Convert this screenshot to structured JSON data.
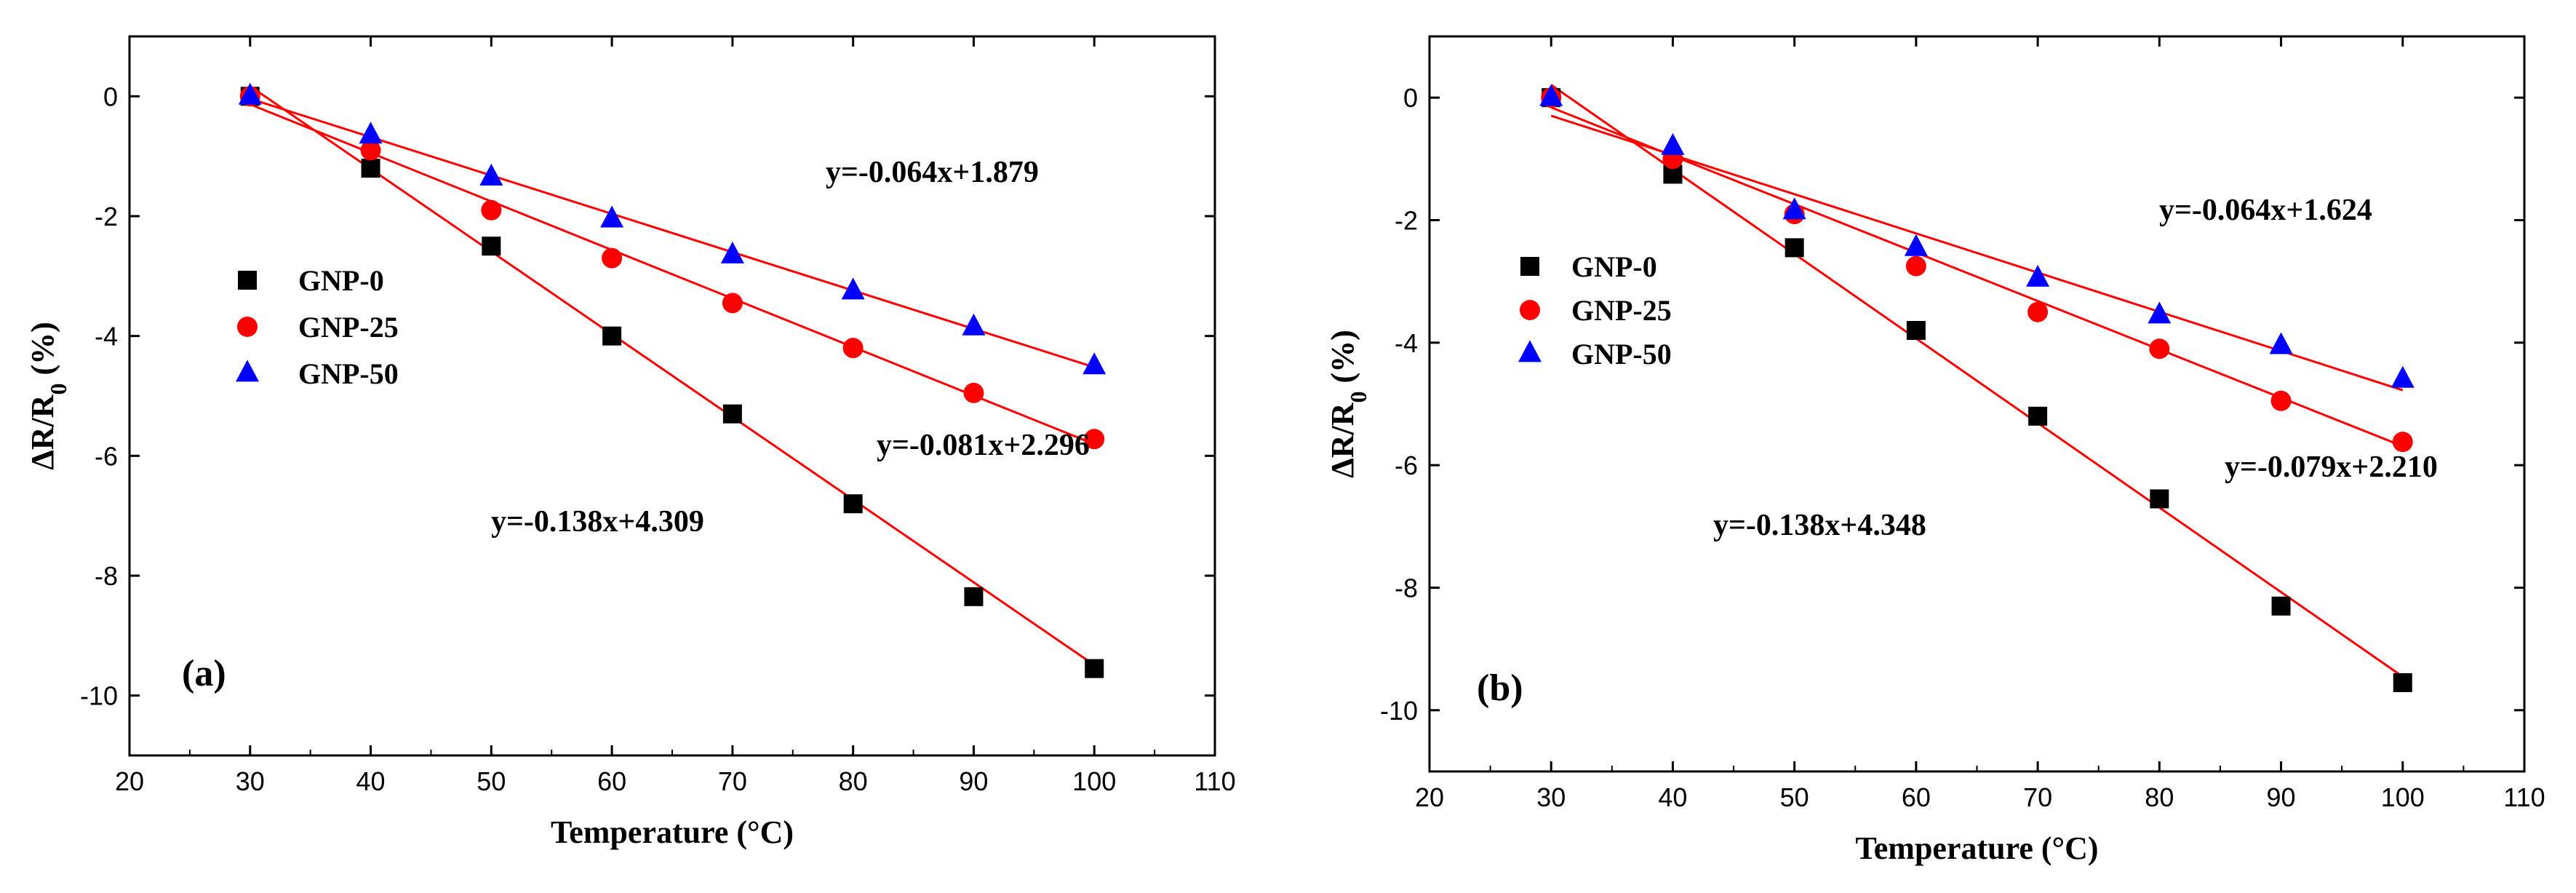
{
  "chart_data": [
    {
      "type": "scatter",
      "panel_label": "(a)",
      "xlabel": "Temperature  (°C)",
      "ylabel": "ΔR/R",
      "ylabel_sub": "0",
      "ylabel_suffix": "  (%)",
      "xlim": [
        20,
        110
      ],
      "ylim": [
        -11,
        1
      ],
      "xticks": [
        20,
        30,
        40,
        50,
        60,
        70,
        80,
        90,
        100,
        110
      ],
      "yticks": [
        0,
        -2,
        -4,
        -6,
        -8,
        -10
      ],
      "x": [
        30,
        40,
        50,
        60,
        70,
        80,
        90,
        100
      ],
      "legend_position": "left-middle",
      "series": [
        {
          "name": "GNP-0",
          "marker": "square",
          "color": "#000000",
          "values": [
            0,
            -1.2,
            -2.5,
            -4.0,
            -5.3,
            -6.8,
            -8.35,
            -9.55
          ],
          "fit": {
            "slope": -0.138,
            "intercept": 4.309,
            "label": "y=-0.138x+4.309"
          }
        },
        {
          "name": "GNP-25",
          "marker": "circle",
          "color": "#ff0000",
          "values": [
            0,
            -0.9,
            -1.9,
            -2.7,
            -3.45,
            -4.2,
            -4.95,
            -5.72
          ],
          "fit": {
            "slope": -0.081,
            "intercept": 2.296,
            "label": "y=-0.081x+2.296"
          }
        },
        {
          "name": "GNP-50",
          "marker": "triangle",
          "color": "#0000ff",
          "values": [
            0,
            -0.65,
            -1.35,
            -2.05,
            -2.65,
            -3.25,
            -3.85,
            -4.5
          ],
          "fit": {
            "slope": -0.064,
            "intercept": 1.879,
            "label": "y=-0.064x+1.879"
          }
        }
      ],
      "fit_line_color": "#ff0000"
    },
    {
      "type": "scatter",
      "panel_label": "(b)",
      "xlabel": "Temperature  (°C)",
      "ylabel": "ΔR/R",
      "ylabel_sub": "0",
      "ylabel_suffix": "  (%)",
      "xlim": [
        20,
        110
      ],
      "ylim": [
        -11,
        1
      ],
      "xticks": [
        20,
        30,
        40,
        50,
        60,
        70,
        80,
        90,
        100,
        110
      ],
      "yticks": [
        0,
        -2,
        -4,
        -6,
        -8,
        -10
      ],
      "x": [
        30,
        40,
        50,
        60,
        70,
        80,
        90,
        100
      ],
      "legend_position": "left-middle",
      "series": [
        {
          "name": "GNP-0",
          "marker": "square",
          "color": "#000000",
          "values": [
            0,
            -1.25,
            -2.45,
            -3.8,
            -5.2,
            -6.55,
            -8.3,
            -9.55
          ],
          "fit": {
            "slope": -0.138,
            "intercept": 4.348,
            "label": "y=-0.138x+4.348"
          }
        },
        {
          "name": "GNP-25",
          "marker": "circle",
          "color": "#ff0000",
          "values": [
            0,
            -1.0,
            -1.9,
            -2.75,
            -3.5,
            -4.1,
            -4.95,
            -5.62
          ],
          "fit": {
            "slope": -0.079,
            "intercept": 2.21,
            "label": "y=-0.079x+2.210"
          }
        },
        {
          "name": "GNP-50",
          "marker": "triangle",
          "color": "#0000ff",
          "values": [
            0,
            -0.8,
            -1.85,
            -2.45,
            -2.95,
            -3.55,
            -4.05,
            -4.6
          ],
          "fit": {
            "slope": -0.064,
            "intercept": 1.624,
            "label": "y=-0.064x+1.624"
          }
        }
      ],
      "fit_line_color": "#ff0000"
    }
  ]
}
